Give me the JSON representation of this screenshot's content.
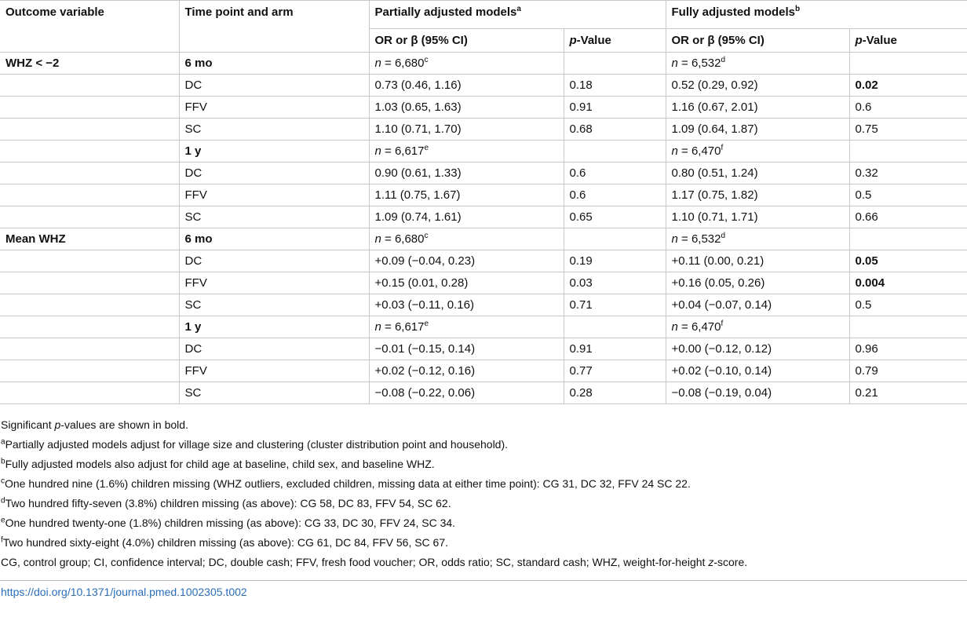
{
  "table": {
    "header": {
      "outcome": [
        {
          "t": "Outcome variable"
        }
      ],
      "time": [
        {
          "t": "Time point and arm"
        }
      ],
      "partial": [
        {
          "t": "Partially adjusted models"
        },
        {
          "t": "a",
          "style": "sup"
        }
      ],
      "full": [
        {
          "t": "Fully adjusted models"
        },
        {
          "t": "b",
          "style": "sup"
        }
      ],
      "sub": [
        [
          {
            "t": "OR or β (95% CI)"
          }
        ],
        [
          {
            "t": "p",
            "style": "italic"
          },
          {
            "t": "-Value"
          }
        ],
        [
          {
            "t": "OR or β (95% CI)"
          }
        ],
        [
          {
            "t": "p",
            "style": "italic"
          },
          {
            "t": "-Value"
          }
        ]
      ]
    },
    "rows": [
      {
        "outcome": [
          {
            "t": "WHZ < −2",
            "style": "bold"
          }
        ],
        "time": [
          {
            "t": "6 mo",
            "style": "bold"
          }
        ],
        "partial_est": [
          {
            "t": "n",
            "style": "italic"
          },
          {
            "t": " = 6,680"
          },
          {
            "t": "c",
            "style": "sup"
          }
        ],
        "full_est": [
          {
            "t": "n",
            "style": "italic"
          },
          {
            "t": " = 6,532"
          },
          {
            "t": "d",
            "style": "sup"
          }
        ]
      },
      {
        "time": [
          {
            "t": "DC"
          }
        ],
        "partial_est": [
          {
            "t": "0.73 (0.46, 1.16)"
          }
        ],
        "partial_p": [
          {
            "t": "0.18"
          }
        ],
        "full_est": [
          {
            "t": "0.52 (0.29, 0.92)"
          }
        ],
        "full_p": [
          {
            "t": "0.02",
            "style": "bold"
          }
        ]
      },
      {
        "time": [
          {
            "t": "FFV"
          }
        ],
        "partial_est": [
          {
            "t": "1.03 (0.65, 1.63)"
          }
        ],
        "partial_p": [
          {
            "t": "0.91"
          }
        ],
        "full_est": [
          {
            "t": "1.16 (0.67, 2.01)"
          }
        ],
        "full_p": [
          {
            "t": "0.6"
          }
        ]
      },
      {
        "time": [
          {
            "t": "SC"
          }
        ],
        "partial_est": [
          {
            "t": "1.10 (0.71, 1.70)"
          }
        ],
        "partial_p": [
          {
            "t": "0.68"
          }
        ],
        "full_est": [
          {
            "t": "1.09 (0.64, 1.87)"
          }
        ],
        "full_p": [
          {
            "t": "0.75"
          }
        ]
      },
      {
        "time": [
          {
            "t": "1 y",
            "style": "bold"
          }
        ],
        "partial_est": [
          {
            "t": "n",
            "style": "italic"
          },
          {
            "t": " = 6,617"
          },
          {
            "t": "e",
            "style": "sup"
          }
        ],
        "full_est": [
          {
            "t": "n",
            "style": "italic"
          },
          {
            "t": " = 6,470"
          },
          {
            "t": "f",
            "style": "sup"
          }
        ]
      },
      {
        "time": [
          {
            "t": "DC"
          }
        ],
        "partial_est": [
          {
            "t": "0.90 (0.61, 1.33)"
          }
        ],
        "partial_p": [
          {
            "t": "0.6"
          }
        ],
        "full_est": [
          {
            "t": "0.80 (0.51, 1.24)"
          }
        ],
        "full_p": [
          {
            "t": "0.32"
          }
        ]
      },
      {
        "time": [
          {
            "t": "FFV"
          }
        ],
        "partial_est": [
          {
            "t": "1.11 (0.75, 1.67)"
          }
        ],
        "partial_p": [
          {
            "t": "0.6"
          }
        ],
        "full_est": [
          {
            "t": "1.17 (0.75, 1.82)"
          }
        ],
        "full_p": [
          {
            "t": "0.5"
          }
        ]
      },
      {
        "time": [
          {
            "t": "SC"
          }
        ],
        "partial_est": [
          {
            "t": "1.09 (0.74, 1.61)"
          }
        ],
        "partial_p": [
          {
            "t": "0.65"
          }
        ],
        "full_est": [
          {
            "t": "1.10 (0.71, 1.71)"
          }
        ],
        "full_p": [
          {
            "t": "0.66"
          }
        ]
      },
      {
        "outcome": [
          {
            "t": "Mean WHZ",
            "style": "bold"
          }
        ],
        "time": [
          {
            "t": "6 mo",
            "style": "bold"
          }
        ],
        "partial_est": [
          {
            "t": "n",
            "style": "italic"
          },
          {
            "t": " = 6,680"
          },
          {
            "t": "c",
            "style": "sup"
          }
        ],
        "full_est": [
          {
            "t": "n",
            "style": "italic"
          },
          {
            "t": " = 6,532"
          },
          {
            "t": "d",
            "style": "sup"
          }
        ]
      },
      {
        "time": [
          {
            "t": "DC"
          }
        ],
        "partial_est": [
          {
            "t": "+0.09 (−0.04, 0.23)"
          }
        ],
        "partial_p": [
          {
            "t": "0.19"
          }
        ],
        "full_est": [
          {
            "t": "+0.11 (0.00, 0.21)"
          }
        ],
        "full_p": [
          {
            "t": "0.05",
            "style": "bold"
          }
        ]
      },
      {
        "time": [
          {
            "t": "FFV"
          }
        ],
        "partial_est": [
          {
            "t": "+0.15 (0.01, 0.28)"
          }
        ],
        "partial_p": [
          {
            "t": "0.03"
          }
        ],
        "full_est": [
          {
            "t": "+0.16 (0.05, 0.26)"
          }
        ],
        "full_p": [
          {
            "t": "0.004",
            "style": "bold"
          }
        ]
      },
      {
        "time": [
          {
            "t": "SC"
          }
        ],
        "partial_est": [
          {
            "t": "+0.03 (−0.11, 0.16)"
          }
        ],
        "partial_p": [
          {
            "t": "0.71"
          }
        ],
        "full_est": [
          {
            "t": "+0.04 (−0.07, 0.14)"
          }
        ],
        "full_p": [
          {
            "t": "0.5"
          }
        ]
      },
      {
        "time": [
          {
            "t": "1 y",
            "style": "bold"
          }
        ],
        "partial_est": [
          {
            "t": "n",
            "style": "italic"
          },
          {
            "t": " = 6,617"
          },
          {
            "t": "e",
            "style": "sup"
          }
        ],
        "full_est": [
          {
            "t": "n",
            "style": "italic"
          },
          {
            "t": " = 6,470"
          },
          {
            "t": "f",
            "style": "sup"
          }
        ]
      },
      {
        "time": [
          {
            "t": "DC"
          }
        ],
        "partial_est": [
          {
            "t": "−0.01 (−0.15, 0.14)"
          }
        ],
        "partial_p": [
          {
            "t": "0.91"
          }
        ],
        "full_est": [
          {
            "t": "+0.00 (−0.12, 0.12)"
          }
        ],
        "full_p": [
          {
            "t": "0.96"
          }
        ]
      },
      {
        "time": [
          {
            "t": "FFV"
          }
        ],
        "partial_est": [
          {
            "t": "+0.02 (−0.12, 0.16)"
          }
        ],
        "partial_p": [
          {
            "t": "0.77"
          }
        ],
        "full_est": [
          {
            "t": "+0.02 (−0.10, 0.14)"
          }
        ],
        "full_p": [
          {
            "t": "0.79"
          }
        ]
      },
      {
        "time": [
          {
            "t": "SC"
          }
        ],
        "partial_est": [
          {
            "t": "−0.08 (−0.22, 0.06)"
          }
        ],
        "partial_p": [
          {
            "t": "0.28"
          }
        ],
        "full_est": [
          {
            "t": "−0.08 (−0.19, 0.04)"
          }
        ],
        "full_p": [
          {
            "t": "0.21"
          }
        ]
      }
    ]
  },
  "footnotes": [
    [
      {
        "t": "Significant "
      },
      {
        "t": "p",
        "style": "italic"
      },
      {
        "t": "-values are shown in bold."
      }
    ],
    [
      {
        "t": "a",
        "style": "sup"
      },
      {
        "t": "Partially adjusted models adjust for village size and clustering (cluster distribution point and household)."
      }
    ],
    [
      {
        "t": "b",
        "style": "sup"
      },
      {
        "t": "Fully adjusted models also adjust for child age at baseline, child sex, and baseline WHZ."
      }
    ],
    [
      {
        "t": "c",
        "style": "sup"
      },
      {
        "t": "One hundred nine (1.6%) children missing (WHZ outliers, excluded children, missing data at either time point): CG 31, DC 32, FFV 24 SC 22."
      }
    ],
    [
      {
        "t": "d",
        "style": "sup"
      },
      {
        "t": "Two hundred fifty-seven (3.8%) children missing (as above): CG 58, DC 83, FFV 54, SC 62."
      }
    ],
    [
      {
        "t": "e",
        "style": "sup"
      },
      {
        "t": "One hundred twenty-one (1.8%) children missing (as above): CG 33, DC 30, FFV 24, SC 34."
      }
    ],
    [
      {
        "t": "f",
        "style": "sup"
      },
      {
        "t": "Two hundred sixty-eight (4.0%) children missing (as above): CG 61, DC 84, FFV 56, SC 67."
      }
    ],
    [
      {
        "t": "CG, control group; CI, confidence interval; DC, double cash; FFV, fresh food voucher; OR, odds ratio; SC, standard cash; WHZ, weight-for-height "
      },
      {
        "t": "z",
        "style": "italic"
      },
      {
        "t": "-score."
      }
    ]
  ],
  "doi": "https://doi.org/10.1371/journal.pmed.1002305.t002"
}
